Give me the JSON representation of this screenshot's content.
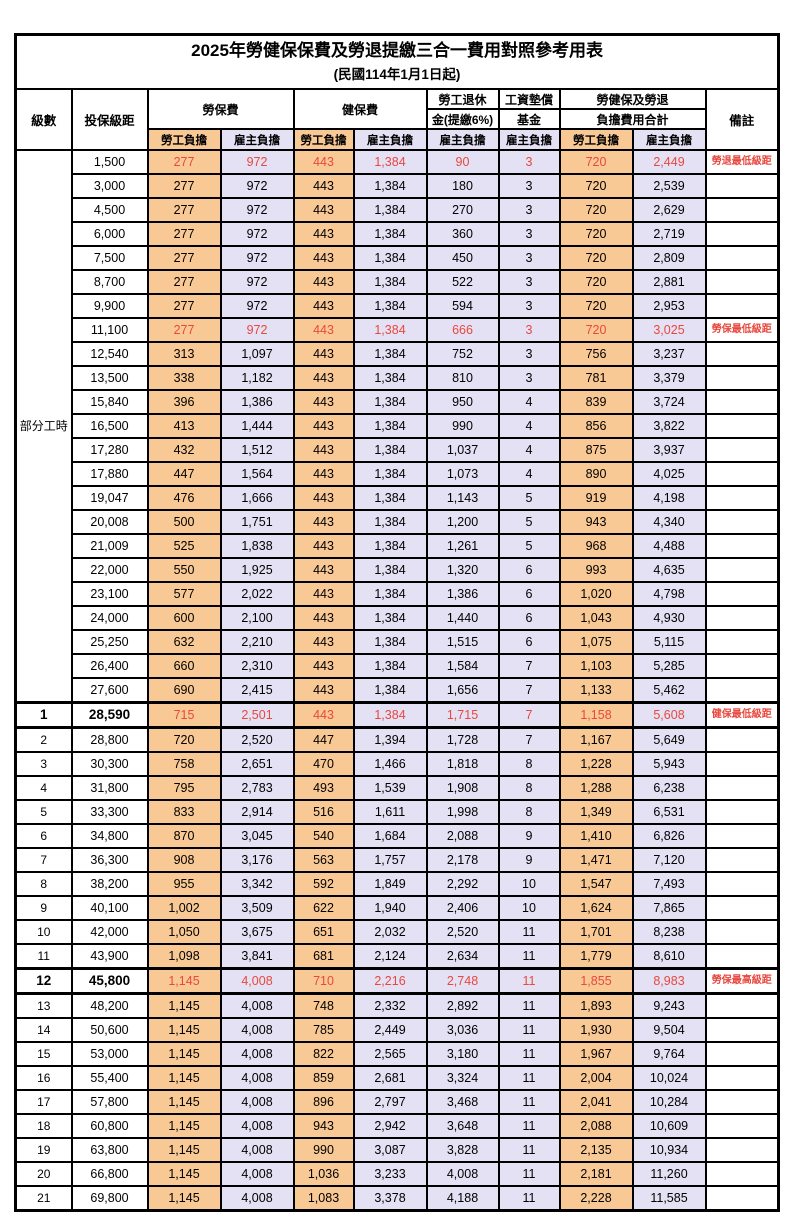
{
  "title": "2025年勞健保保費及勞退提繳三合一費用對照參考用表",
  "subtitle": "(民國114年1月1日起)",
  "colors": {
    "employee_col_bg": "#f9c995",
    "employer_col_bg": "#e3e1f3",
    "highlight_text": "#e8483f",
    "grid": "#000000"
  },
  "header": {
    "level": "級數",
    "bracket": "投保級距",
    "labor_ins": "勞保費",
    "health_ins": "健保費",
    "pension_line1": "勞工退休",
    "pension_line2": "金(提繳6%)",
    "wage_fund_line1": "工資墊償",
    "wage_fund_line2": "基金",
    "total_line1": "勞健保及勞退",
    "total_line2": "負擔費用合計",
    "employee": "勞工負擔",
    "employer": "雇主負擔",
    "remark": "備註"
  },
  "part_time_label": "部分工時",
  "chart_data": {
    "type": "table",
    "title": "2025年勞健保保費及勞退提繳三合一費用對照參考用表",
    "columns": [
      "級數",
      "投保級距",
      "勞保費-勞工負擔",
      "勞保費-雇主負擔",
      "健保費-勞工負擔",
      "健保費-雇主負擔",
      "勞工退休金(提繳6%)-雇主負擔",
      "工資墊償基金-雇主負擔",
      "合計-勞工負擔",
      "合計-雇主負擔",
      "備註"
    ]
  },
  "rows": [
    {
      "level": "",
      "bracket": "1,500",
      "cells": [
        "277",
        "972",
        "443",
        "1,384",
        "90",
        "3",
        "720",
        "2,449"
      ],
      "remark": "勞退最低級距",
      "red": true
    },
    {
      "level": "",
      "bracket": "3,000",
      "cells": [
        "277",
        "972",
        "443",
        "1,384",
        "180",
        "3",
        "720",
        "2,539"
      ],
      "remark": ""
    },
    {
      "level": "",
      "bracket": "4,500",
      "cells": [
        "277",
        "972",
        "443",
        "1,384",
        "270",
        "3",
        "720",
        "2,629"
      ],
      "remark": ""
    },
    {
      "level": "",
      "bracket": "6,000",
      "cells": [
        "277",
        "972",
        "443",
        "1,384",
        "360",
        "3",
        "720",
        "2,719"
      ],
      "remark": ""
    },
    {
      "level": "",
      "bracket": "7,500",
      "cells": [
        "277",
        "972",
        "443",
        "1,384",
        "450",
        "3",
        "720",
        "2,809"
      ],
      "remark": ""
    },
    {
      "level": "",
      "bracket": "8,700",
      "cells": [
        "277",
        "972",
        "443",
        "1,384",
        "522",
        "3",
        "720",
        "2,881"
      ],
      "remark": ""
    },
    {
      "level": "",
      "bracket": "9,900",
      "cells": [
        "277",
        "972",
        "443",
        "1,384",
        "594",
        "3",
        "720",
        "2,953"
      ],
      "remark": ""
    },
    {
      "level": "",
      "bracket": "11,100",
      "cells": [
        "277",
        "972",
        "443",
        "1,384",
        "666",
        "3",
        "720",
        "3,025"
      ],
      "remark": "勞保最低級距",
      "red": true
    },
    {
      "level": "",
      "bracket": "12,540",
      "cells": [
        "313",
        "1,097",
        "443",
        "1,384",
        "752",
        "3",
        "756",
        "3,237"
      ],
      "remark": ""
    },
    {
      "level": "",
      "bracket": "13,500",
      "cells": [
        "338",
        "1,182",
        "443",
        "1,384",
        "810",
        "3",
        "781",
        "3,379"
      ],
      "remark": ""
    },
    {
      "level": "",
      "bracket": "15,840",
      "cells": [
        "396",
        "1,386",
        "443",
        "1,384",
        "950",
        "4",
        "839",
        "3,724"
      ],
      "remark": ""
    },
    {
      "level": "",
      "bracket": "16,500",
      "cells": [
        "413",
        "1,444",
        "443",
        "1,384",
        "990",
        "4",
        "856",
        "3,822"
      ],
      "remark": ""
    },
    {
      "level": "",
      "bracket": "17,280",
      "cells": [
        "432",
        "1,512",
        "443",
        "1,384",
        "1,037",
        "4",
        "875",
        "3,937"
      ],
      "remark": ""
    },
    {
      "level": "",
      "bracket": "17,880",
      "cells": [
        "447",
        "1,564",
        "443",
        "1,384",
        "1,073",
        "4",
        "890",
        "4,025"
      ],
      "remark": ""
    },
    {
      "level": "",
      "bracket": "19,047",
      "cells": [
        "476",
        "1,666",
        "443",
        "1,384",
        "1,143",
        "5",
        "919",
        "4,198"
      ],
      "remark": ""
    },
    {
      "level": "",
      "bracket": "20,008",
      "cells": [
        "500",
        "1,751",
        "443",
        "1,384",
        "1,200",
        "5",
        "943",
        "4,340"
      ],
      "remark": ""
    },
    {
      "level": "",
      "bracket": "21,009",
      "cells": [
        "525",
        "1,838",
        "443",
        "1,384",
        "1,261",
        "5",
        "968",
        "4,488"
      ],
      "remark": ""
    },
    {
      "level": "",
      "bracket": "22,000",
      "cells": [
        "550",
        "1,925",
        "443",
        "1,384",
        "1,320",
        "6",
        "993",
        "4,635"
      ],
      "remark": ""
    },
    {
      "level": "",
      "bracket": "23,100",
      "cells": [
        "577",
        "2,022",
        "443",
        "1,384",
        "1,386",
        "6",
        "1,020",
        "4,798"
      ],
      "remark": ""
    },
    {
      "level": "",
      "bracket": "24,000",
      "cells": [
        "600",
        "2,100",
        "443",
        "1,384",
        "1,440",
        "6",
        "1,043",
        "4,930"
      ],
      "remark": ""
    },
    {
      "level": "",
      "bracket": "25,250",
      "cells": [
        "632",
        "2,210",
        "443",
        "1,384",
        "1,515",
        "6",
        "1,075",
        "5,115"
      ],
      "remark": ""
    },
    {
      "level": "",
      "bracket": "26,400",
      "cells": [
        "660",
        "2,310",
        "443",
        "1,384",
        "1,584",
        "7",
        "1,103",
        "5,285"
      ],
      "remark": ""
    },
    {
      "level": "",
      "bracket": "27,600",
      "cells": [
        "690",
        "2,415",
        "443",
        "1,384",
        "1,656",
        "7",
        "1,133",
        "5,462"
      ],
      "remark": ""
    },
    {
      "level": "1",
      "bracket": "28,590",
      "cells": [
        "715",
        "2,501",
        "443",
        "1,384",
        "1,715",
        "7",
        "1,158",
        "5,608"
      ],
      "remark": "健保最低級距",
      "red": true,
      "bold": true
    },
    {
      "level": "2",
      "bracket": "28,800",
      "cells": [
        "720",
        "2,520",
        "447",
        "1,394",
        "1,728",
        "7",
        "1,167",
        "5,649"
      ],
      "remark": ""
    },
    {
      "level": "3",
      "bracket": "30,300",
      "cells": [
        "758",
        "2,651",
        "470",
        "1,466",
        "1,818",
        "8",
        "1,228",
        "5,943"
      ],
      "remark": ""
    },
    {
      "level": "4",
      "bracket": "31,800",
      "cells": [
        "795",
        "2,783",
        "493",
        "1,539",
        "1,908",
        "8",
        "1,288",
        "6,238"
      ],
      "remark": ""
    },
    {
      "level": "5",
      "bracket": "33,300",
      "cells": [
        "833",
        "2,914",
        "516",
        "1,611",
        "1,998",
        "8",
        "1,349",
        "6,531"
      ],
      "remark": ""
    },
    {
      "level": "6",
      "bracket": "34,800",
      "cells": [
        "870",
        "3,045",
        "540",
        "1,684",
        "2,088",
        "9",
        "1,410",
        "6,826"
      ],
      "remark": ""
    },
    {
      "level": "7",
      "bracket": "36,300",
      "cells": [
        "908",
        "3,176",
        "563",
        "1,757",
        "2,178",
        "9",
        "1,471",
        "7,120"
      ],
      "remark": ""
    },
    {
      "level": "8",
      "bracket": "38,200",
      "cells": [
        "955",
        "3,342",
        "592",
        "1,849",
        "2,292",
        "10",
        "1,547",
        "7,493"
      ],
      "remark": ""
    },
    {
      "level": "9",
      "bracket": "40,100",
      "cells": [
        "1,002",
        "3,509",
        "622",
        "1,940",
        "2,406",
        "10",
        "1,624",
        "7,865"
      ],
      "remark": ""
    },
    {
      "level": "10",
      "bracket": "42,000",
      "cells": [
        "1,050",
        "3,675",
        "651",
        "2,032",
        "2,520",
        "11",
        "1,701",
        "8,238"
      ],
      "remark": ""
    },
    {
      "level": "11",
      "bracket": "43,900",
      "cells": [
        "1,098",
        "3,841",
        "681",
        "2,124",
        "2,634",
        "11",
        "1,779",
        "8,610"
      ],
      "remark": ""
    },
    {
      "level": "12",
      "bracket": "45,800",
      "cells": [
        "1,145",
        "4,008",
        "710",
        "2,216",
        "2,748",
        "11",
        "1,855",
        "8,983"
      ],
      "remark": "勞保最高級距",
      "red": true,
      "bold": true
    },
    {
      "level": "13",
      "bracket": "48,200",
      "cells": [
        "1,145",
        "4,008",
        "748",
        "2,332",
        "2,892",
        "11",
        "1,893",
        "9,243"
      ],
      "remark": ""
    },
    {
      "level": "14",
      "bracket": "50,600",
      "cells": [
        "1,145",
        "4,008",
        "785",
        "2,449",
        "3,036",
        "11",
        "1,930",
        "9,504"
      ],
      "remark": ""
    },
    {
      "level": "15",
      "bracket": "53,000",
      "cells": [
        "1,145",
        "4,008",
        "822",
        "2,565",
        "3,180",
        "11",
        "1,967",
        "9,764"
      ],
      "remark": ""
    },
    {
      "level": "16",
      "bracket": "55,400",
      "cells": [
        "1,145",
        "4,008",
        "859",
        "2,681",
        "3,324",
        "11",
        "2,004",
        "10,024"
      ],
      "remark": ""
    },
    {
      "level": "17",
      "bracket": "57,800",
      "cells": [
        "1,145",
        "4,008",
        "896",
        "2,797",
        "3,468",
        "11",
        "2,041",
        "10,284"
      ],
      "remark": ""
    },
    {
      "level": "18",
      "bracket": "60,800",
      "cells": [
        "1,145",
        "4,008",
        "943",
        "2,942",
        "3,648",
        "11",
        "2,088",
        "10,609"
      ],
      "remark": ""
    },
    {
      "level": "19",
      "bracket": "63,800",
      "cells": [
        "1,145",
        "4,008",
        "990",
        "3,087",
        "3,828",
        "11",
        "2,135",
        "10,934"
      ],
      "remark": ""
    },
    {
      "level": "20",
      "bracket": "66,800",
      "cells": [
        "1,145",
        "4,008",
        "1,036",
        "3,233",
        "4,008",
        "11",
        "2,181",
        "11,260"
      ],
      "remark": ""
    },
    {
      "level": "21",
      "bracket": "69,800",
      "cells": [
        "1,145",
        "4,008",
        "1,083",
        "3,378",
        "4,188",
        "11",
        "2,228",
        "11,585"
      ],
      "remark": ""
    }
  ]
}
